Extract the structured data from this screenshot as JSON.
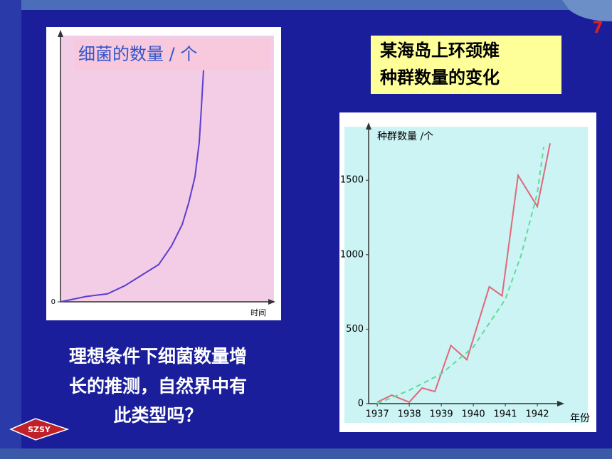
{
  "slide_number": "7",
  "caption": [
    "理想条件下细菌数量增",
    "长的推测，自然界中有",
    "此类型吗？"
  ],
  "logo": "SZSY",
  "chart_data": [
    {
      "type": "line",
      "ylabel": "细菌的数量 / 个",
      "xlabel": "时间",
      "xlim": [
        0,
        100
      ],
      "ylim": [
        0,
        100
      ],
      "yticks": [
        0
      ],
      "series": [
        {
          "color": "#5a3fd0",
          "x": [
            0,
            12,
            22,
            30,
            38,
            46,
            52,
            57,
            60,
            63,
            65,
            66,
            67
          ],
          "values": [
            0,
            2,
            3,
            6,
            10,
            14,
            21,
            29,
            37,
            47,
            60,
            73,
            87
          ]
        }
      ]
    },
    {
      "type": "line",
      "title": [
        "某海岛上环颈雉",
        "种群数量的变化"
      ],
      "ylabel": "种群数量 /个",
      "xlabel": "年份",
      "xlim": [
        1936.73,
        1942.8
      ],
      "ylim": [
        0,
        1850
      ],
      "xticks": [
        1937,
        1938,
        1939,
        1940,
        1941,
        1942
      ],
      "yticks": [
        0,
        500,
        1000,
        1500
      ],
      "series": [
        {
          "color": "#e06878",
          "dashed": false,
          "x": [
            1937,
            1937.45,
            1938,
            1938.4,
            1938.8,
            1939.3,
            1939.8,
            1940.5,
            1940.9,
            1941.4,
            1942,
            1942.4
          ],
          "values": [
            10,
            57,
            10,
            105,
            81,
            390,
            295,
            785,
            724,
            1533,
            1324,
            1748
          ]
        },
        {
          "color": "#5fdc98",
          "dashed": true,
          "x": [
            1937,
            1938,
            1939,
            1940,
            1941,
            1941.5,
            1942,
            1942.2
          ],
          "values": [
            0,
            90,
            200,
            380,
            700,
            1000,
            1414,
            1724
          ]
        }
      ]
    }
  ]
}
